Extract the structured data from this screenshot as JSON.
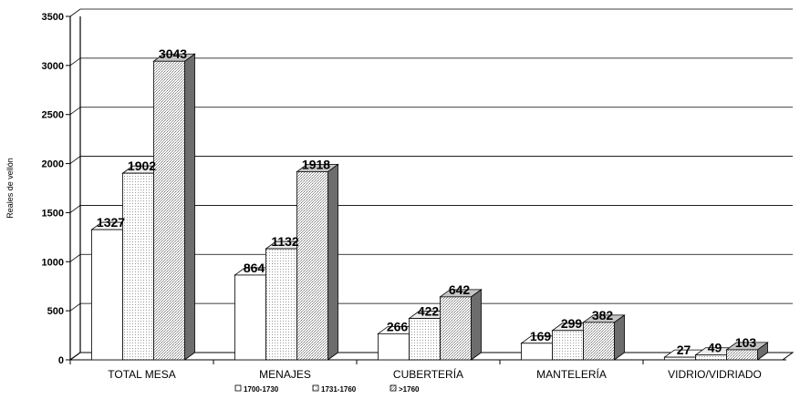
{
  "chart_data": {
    "type": "bar",
    "title": "",
    "xlabel": "",
    "ylabel": "Reales de vellón",
    "ylim": [
      0,
      3500
    ],
    "yticks": [
      0,
      500,
      1000,
      1500,
      2000,
      2500,
      3000,
      3500
    ],
    "grid": true,
    "legend_position": "bottom",
    "categories": [
      "TOTAL MESA",
      "MENAJES",
      "CUBERTERÍA",
      "MANTELERÍA",
      "VIDRIO/VIDRIADO"
    ],
    "series": [
      {
        "name": "1700-1730",
        "values": [
          1327,
          864,
          266,
          169,
          27
        ]
      },
      {
        "name": "1731-1760",
        "values": [
          1902,
          1132,
          422,
          299,
          49
        ]
      },
      {
        "name": ">1760",
        "values": [
          3043,
          1918,
          642,
          382,
          103
        ]
      }
    ]
  }
}
